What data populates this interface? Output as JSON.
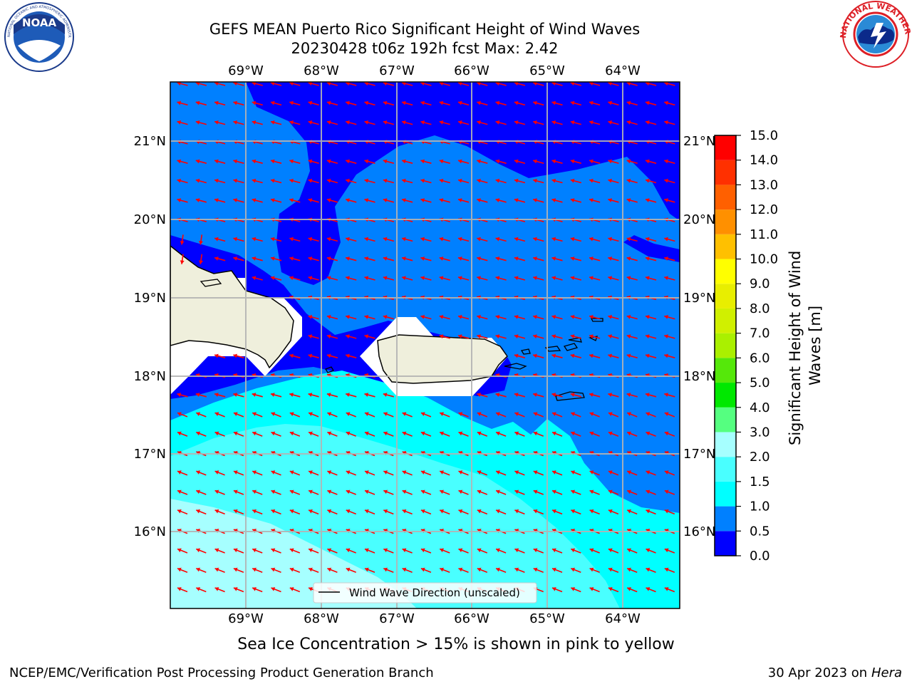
{
  "header": {
    "title_line1": "GEFS MEAN Puerto Rico Significant Height of Wind Waves",
    "title_line2": "20230428 t06z 192h fcst   Max: 2.42"
  },
  "map": {
    "lon_labels": [
      "69°W",
      "68°W",
      "67°W",
      "66°W",
      "65°W",
      "64°W"
    ],
    "lat_labels": [
      "21°N",
      "20°N",
      "19°N",
      "18°N",
      "17°N",
      "16°N"
    ],
    "legend_label": "Wind Wave Direction (unscaled)",
    "arrow_color": "#ff0000"
  },
  "colorbar": {
    "label": "Significant Height of Wind Waves [m]",
    "ticks": [
      "15.0",
      "14.0",
      "13.0",
      "12.0",
      "11.0",
      "10.0",
      "9.0",
      "8.0",
      "7.0",
      "6.0",
      "5.0",
      "4.0",
      "3.0",
      "2.0",
      "1.5",
      "1.0",
      "0.5",
      "0.0"
    ],
    "bands": [
      {
        "from": 0.0,
        "to": 0.5,
        "color": "#0000ff"
      },
      {
        "from": 0.5,
        "to": 1.0,
        "color": "#0080ff"
      },
      {
        "from": 1.0,
        "to": 1.5,
        "color": "#00ffff"
      },
      {
        "from": 1.5,
        "to": 2.0,
        "color": "#49ffff"
      },
      {
        "from": 2.0,
        "to": 3.0,
        "color": "#a6ffff"
      },
      {
        "from": 3.0,
        "to": 4.0,
        "color": "#55ff80"
      },
      {
        "from": 4.0,
        "to": 5.0,
        "color": "#00e800"
      },
      {
        "from": 5.0,
        "to": 6.0,
        "color": "#55e80a"
      },
      {
        "from": 6.0,
        "to": 7.0,
        "color": "#aaf000"
      },
      {
        "from": 7.0,
        "to": 8.0,
        "color": "#d0f000"
      },
      {
        "from": 8.0,
        "to": 9.0,
        "color": "#e8ee00"
      },
      {
        "from": 9.0,
        "to": 10.0,
        "color": "#ffff00"
      },
      {
        "from": 10.0,
        "to": 11.0,
        "color": "#ffc000"
      },
      {
        "from": 11.0,
        "to": 12.0,
        "color": "#ff9000"
      },
      {
        "from": 12.0,
        "to": 13.0,
        "color": "#ff6000"
      },
      {
        "from": 13.0,
        "to": 14.0,
        "color": "#ff3000"
      },
      {
        "from": 14.0,
        "to": 15.0,
        "color": "#ff0000"
      }
    ]
  },
  "footer": {
    "sea_ice_note": "Sea Ice Concentration > 15% is shown in pink to yellow",
    "producer": "NCEP/EMC/Verification Post Processing Product Generation Branch",
    "date": "30 Apr 2023 on",
    "machine": "Hera"
  },
  "logos": {
    "noaa_text": "NOAA",
    "noaa_ring_text": "NATIONAL OCEANIC AND ATMOSPHERIC ADMINISTRATION · U.S. DEPARTMENT OF COMMERCE",
    "nws_ring_text": "NATIONAL WEATHER SERVICE"
  }
}
